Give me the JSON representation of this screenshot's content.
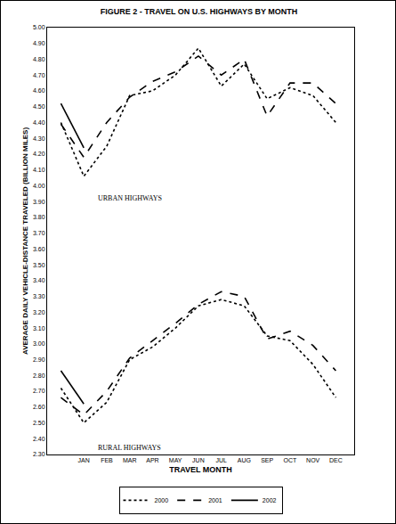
{
  "chart_data": {
    "type": "line",
    "title": "FIGURE 2 - TRAVEL ON U.S. HIGHWAYS BY MONTH",
    "x_label": "TRAVEL MONTH",
    "y_label": "AVERAGE DAILY VEHICLE-DISTANCE TRAVELED (BILLION MILES)",
    "categories": [
      null,
      "JAN",
      "FEB",
      "MAR",
      "APR",
      "MAY",
      "JUN",
      "JUL",
      "AUG",
      "SEP",
      "OCT",
      "NOV",
      "DEC"
    ],
    "series": [
      {
        "name": "2000",
        "color": "#000000",
        "line_style": "dotted",
        "values": [
          4.4,
          4.06,
          4.25,
          4.57,
          4.6,
          4.7,
          4.87,
          4.63,
          4.77,
          4.55,
          4.62,
          4.57,
          4.4
        ]
      },
      {
        "name": "2001",
        "color": "#000000",
        "line_style": "dashed",
        "values": [
          4.39,
          4.18,
          4.4,
          4.56,
          4.66,
          4.72,
          4.82,
          4.7,
          4.8,
          4.44,
          4.65,
          4.65,
          4.52
        ]
      },
      {
        "name": "2002",
        "color": "#000000",
        "line_style": "solid",
        "values": [
          4.52,
          4.24,
          null,
          null,
          null,
          null,
          null,
          null,
          null,
          null,
          null,
          null,
          null
        ]
      },
      {
        "name": "2000",
        "color": "#000000",
        "line_style": "dotted",
        "values": [
          2.72,
          2.5,
          2.63,
          2.9,
          2.98,
          3.1,
          3.24,
          3.28,
          3.24,
          3.05,
          3.02,
          2.87,
          2.66
        ]
      },
      {
        "name": "2001",
        "color": "#000000",
        "line_style": "dashed",
        "values": [
          2.66,
          2.55,
          2.7,
          2.91,
          3.02,
          3.13,
          3.25,
          3.33,
          3.3,
          3.03,
          3.08,
          2.99,
          2.83
        ]
      },
      {
        "name": "2002",
        "color": "#000000",
        "line_style": "solid",
        "values": [
          2.83,
          2.62,
          null,
          null,
          null,
          null,
          null,
          null,
          null,
          null,
          null,
          null,
          null
        ]
      }
    ],
    "annotations": [
      "URBAN HIGHWAYS",
      "RURAL HIGHWAYS"
    ],
    "ylim": [
      2.3,
      5.0
    ],
    "yticks": [
      {
        "value": 2.3,
        "label": "2.30"
      },
      {
        "value": 2.4,
        "label": "2.40"
      },
      {
        "value": 2.5,
        "label": "2.50"
      },
      {
        "value": 2.6,
        "label": "2.60"
      },
      {
        "value": 2.7,
        "label": "2.70"
      },
      {
        "value": 2.8,
        "label": "2.80"
      },
      {
        "value": 2.9,
        "label": "2.90"
      },
      {
        "value": 3.0,
        "label": "3.00"
      },
      {
        "value": 3.1,
        "label": "3.10"
      },
      {
        "value": 3.2,
        "label": "3.20"
      },
      {
        "value": 3.3,
        "label": "3.30"
      },
      {
        "value": 3.4,
        "label": "3.40"
      },
      {
        "value": 3.5,
        "label": "3.50"
      },
      {
        "value": 3.6,
        "label": "3.60"
      },
      {
        "value": 3.7,
        "label": "3.70"
      },
      {
        "value": 3.8,
        "label": "3.80"
      },
      {
        "value": 3.9,
        "label": "3.90"
      },
      {
        "value": 4.0,
        "label": "4.00"
      },
      {
        "value": 4.1,
        "label": "4.10"
      },
      {
        "value": 4.2,
        "label": "4.20"
      },
      {
        "value": 4.3,
        "label": "4.30"
      },
      {
        "value": 4.4,
        "label": "4.40"
      },
      {
        "value": 4.5,
        "label": "4.50"
      },
      {
        "value": 4.6,
        "label": "4.60"
      },
      {
        "value": 4.7,
        "label": "4.70"
      },
      {
        "value": 4.8,
        "label": "4.80"
      },
      {
        "value": 4.9,
        "label": "4.90"
      },
      {
        "value": 5.0,
        "label": "5.00"
      }
    ],
    "grid": false,
    "legend": "bottom"
  }
}
